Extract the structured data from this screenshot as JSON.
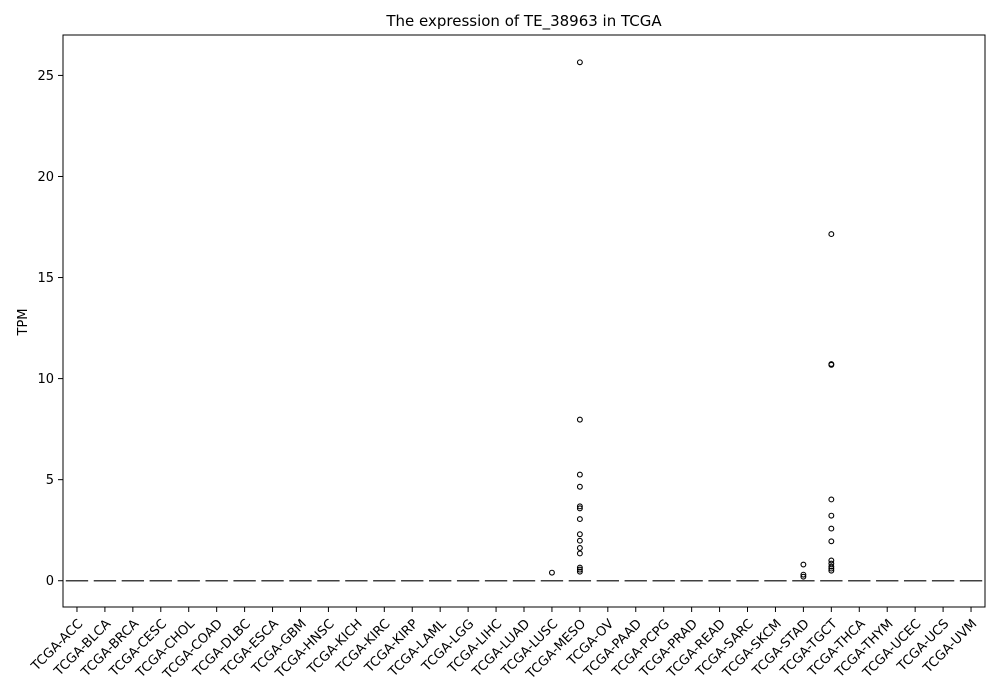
{
  "chart_data": {
    "type": "box",
    "title": "The expression of TE_38963 in TCGA",
    "xlabel": "",
    "ylabel": "TPM",
    "ylim": [
      -1.3,
      27.0
    ],
    "yticks": [
      0,
      5,
      10,
      15,
      20,
      25
    ],
    "grid": false,
    "categories": [
      "TCGA-ACC",
      "TCGA-BLCA",
      "TCGA-BRCA",
      "TCGA-CESC",
      "TCGA-CHOL",
      "TCGA-COAD",
      "TCGA-DLBC",
      "TCGA-ESCA",
      "TCGA-GBM",
      "TCGA-HNSC",
      "TCGA-KICH",
      "TCGA-KIRC",
      "TCGA-KIRP",
      "TCGA-LAML",
      "TCGA-LGG",
      "TCGA-LIHC",
      "TCGA-LUAD",
      "TCGA-LUSC",
      "TCGA-MESO",
      "TCGA-OV",
      "TCGA-PAAD",
      "TCGA-PCPG",
      "TCGA-PRAD",
      "TCGA-READ",
      "TCGA-SARC",
      "TCGA-SKCM",
      "TCGA-STAD",
      "TCGA-TGCT",
      "TCGA-THCA",
      "TCGA-THYM",
      "TCGA-UCEC",
      "TCGA-UCS",
      "TCGA-UVM"
    ],
    "median": [
      0,
      0,
      0,
      0,
      0,
      0,
      0,
      0,
      0,
      0,
      0,
      0,
      0,
      0,
      0,
      0,
      0,
      0,
      0,
      0,
      0,
      0,
      0,
      0,
      0,
      0,
      0,
      0,
      0,
      0,
      0,
      0,
      0
    ],
    "outliers": [
      {
        "category": "TCGA-LUSC",
        "values": [
          0.4
        ]
      },
      {
        "category": "TCGA-MESO",
        "values": [
          25.65,
          7.97,
          5.25,
          4.65,
          3.68,
          3.58,
          3.05,
          2.3,
          1.98,
          1.62,
          1.35,
          0.65,
          0.55,
          0.45
        ]
      },
      {
        "category": "TCGA-STAD",
        "values": [
          0.8,
          0.3,
          0.2
        ]
      },
      {
        "category": "TCGA-TGCT",
        "values": [
          17.15,
          10.72,
          10.68,
          4.02,
          3.22,
          2.58,
          1.95,
          1.0,
          0.85,
          0.7,
          0.6,
          0.5
        ]
      }
    ],
    "colors": {
      "box_line": "#404040",
      "outlier_edge": "#000000",
      "axis": "#000000"
    }
  }
}
